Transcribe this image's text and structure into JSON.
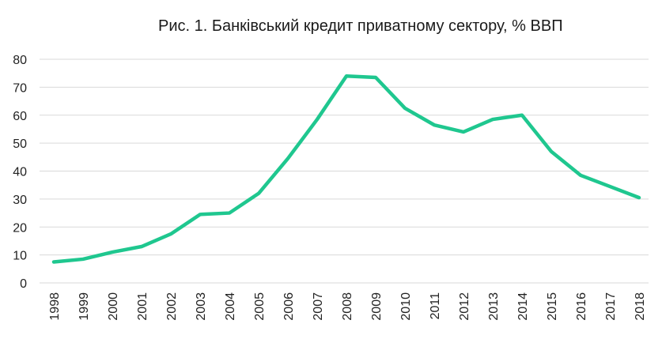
{
  "chart_data": {
    "type": "line",
    "title": "Рис. 1. Банківський кредит приватному сектору, % ВВП",
    "xlabel": "",
    "ylabel": "",
    "x": [
      "1998",
      "1999",
      "2000",
      "2001",
      "2002",
      "2003",
      "2004",
      "2005",
      "2006",
      "2007",
      "2008",
      "2009",
      "2010",
      "2011",
      "2012",
      "2013",
      "2014",
      "2015",
      "2016",
      "2017",
      "2018"
    ],
    "series": [
      {
        "values": [
          7.5,
          8.5,
          11,
          13,
          17.5,
          24.5,
          25,
          32,
          44.5,
          58.5,
          74,
          73.5,
          62.5,
          56.5,
          54,
          58.5,
          60,
          47,
          38.5,
          34.5,
          30.5
        ],
        "color": "#1fc78f"
      }
    ],
    "ylim": [
      0,
      80
    ],
    "yticks": [
      "0",
      "10",
      "20",
      "30",
      "40",
      "50",
      "60",
      "70",
      "80"
    ],
    "grid": true,
    "legend": "none",
    "gridline_color": "#d9d9d9"
  }
}
